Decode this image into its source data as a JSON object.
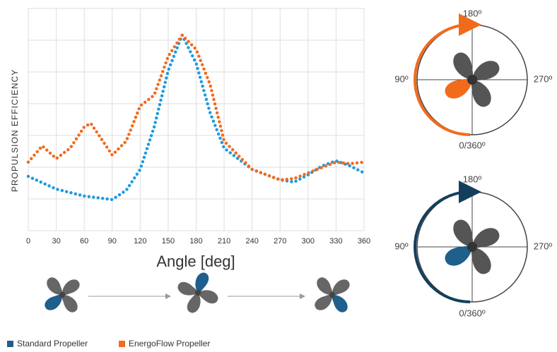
{
  "chart_data": {
    "type": "line",
    "y_label": "PROPULSION EFFICIENCY",
    "x_label": "Angle [deg]",
    "xlim": [
      0,
      360
    ],
    "xticks": [
      0,
      30,
      60,
      90,
      120,
      150,
      180,
      210,
      240,
      270,
      300,
      330,
      360
    ],
    "ylim": [
      0,
      7
    ],
    "grid_lines": [
      0,
      1,
      2,
      3,
      4,
      5,
      6,
      7
    ],
    "grid": true,
    "series": [
      {
        "name": "Standard Propeller",
        "color": "#1f9be0",
        "legend_color": "#1f5f8b",
        "x": [
          0,
          30,
          60,
          90,
          105,
          120,
          135,
          150,
          165,
          180,
          195,
          210,
          240,
          270,
          285,
          300,
          315,
          330,
          345,
          360
        ],
        "values": [
          1.71,
          1.31,
          1.09,
          0.98,
          1.27,
          1.93,
          3.27,
          5.04,
          6.16,
          5.27,
          3.71,
          2.6,
          1.93,
          1.6,
          1.53,
          1.76,
          2.04,
          2.2,
          2.04,
          1.82
        ]
      },
      {
        "name": "EnergoFlow Propeller",
        "color": "#f26b1d",
        "legend_color": "#f26b1d",
        "x": [
          0,
          15,
          30,
          45,
          60,
          67,
          75,
          90,
          105,
          120,
          135,
          150,
          165,
          180,
          195,
          210,
          240,
          270,
          285,
          300,
          330,
          345,
          360
        ],
        "values": [
          2.16,
          2.67,
          2.27,
          2.6,
          3.27,
          3.38,
          3.04,
          2.38,
          2.82,
          3.93,
          4.27,
          5.49,
          6.16,
          5.71,
          4.6,
          2.82,
          1.93,
          1.6,
          1.64,
          1.82,
          2.16,
          2.11,
          2.16
        ]
      }
    ]
  },
  "diagrams": [
    {
      "top": "180º",
      "left": "90º",
      "right": "270º",
      "bottom": "0/360º"
    },
    {
      "top": "180º",
      "left": "90º",
      "right": "270º",
      "bottom": "0/360º"
    }
  ]
}
